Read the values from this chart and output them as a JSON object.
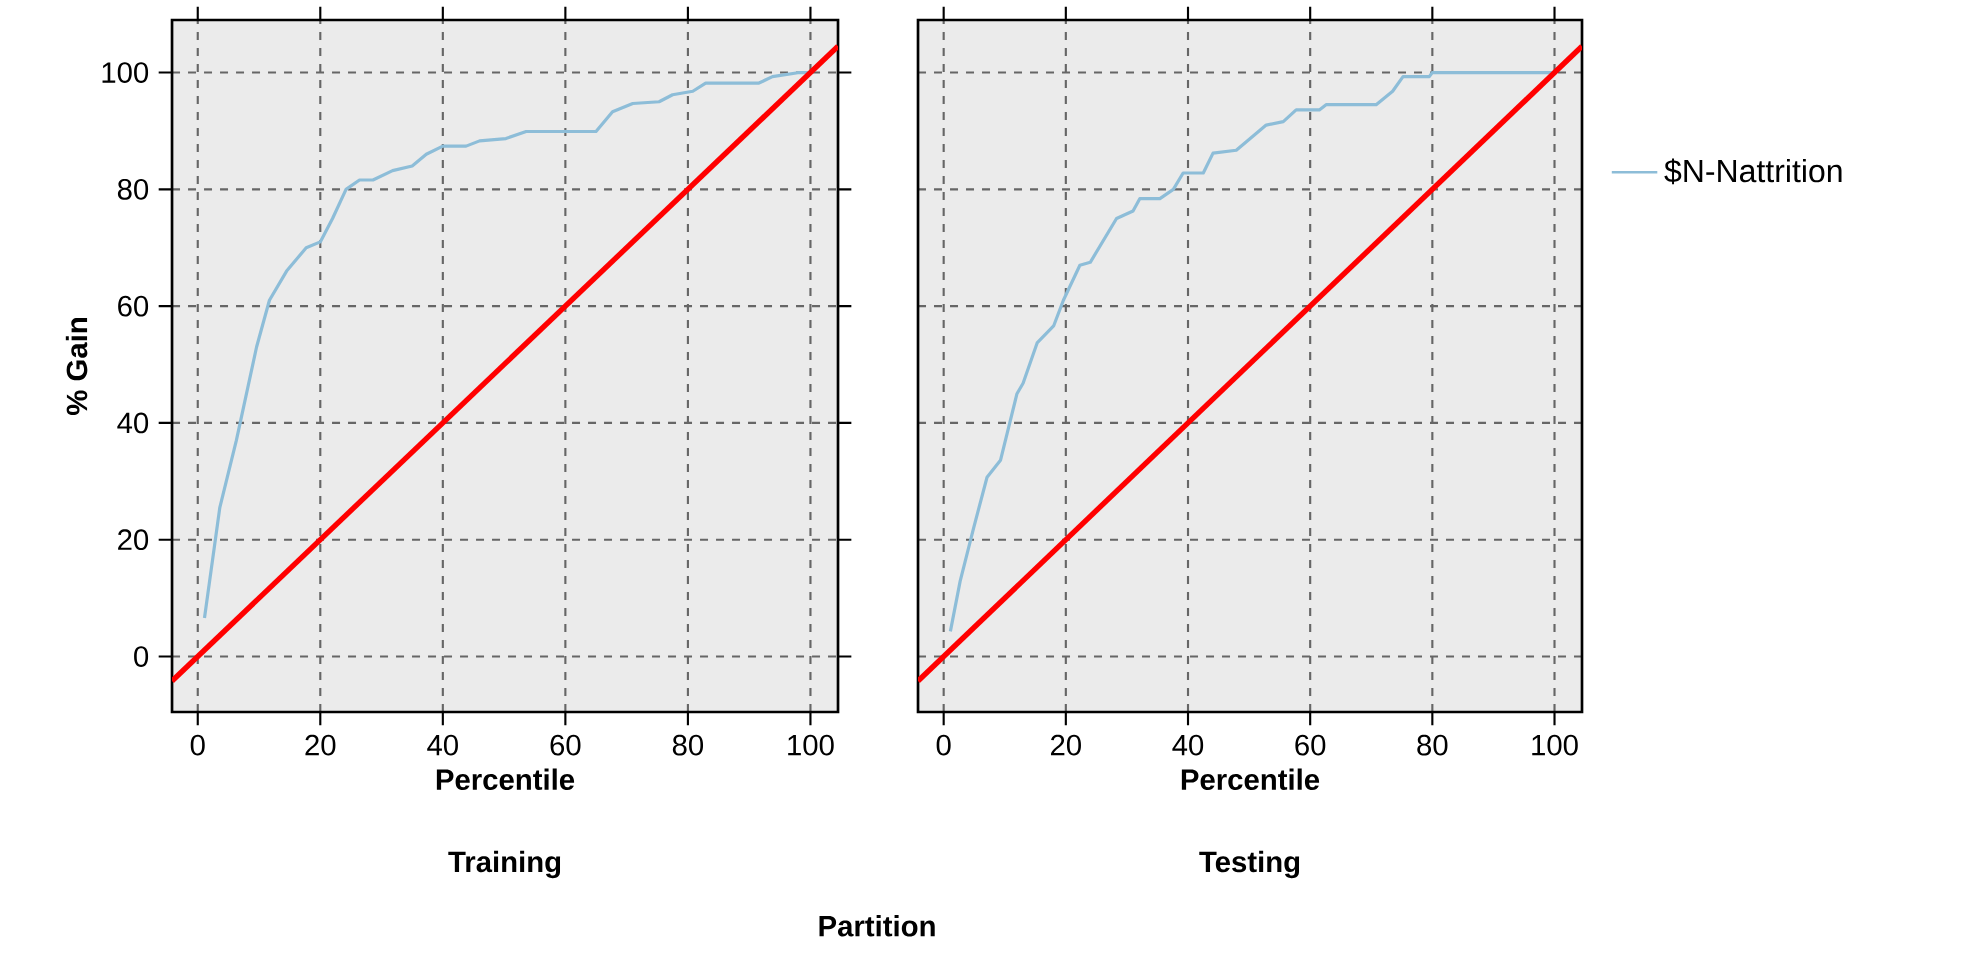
{
  "chart_data": [
    {
      "type": "line",
      "title": "Training",
      "xlabel": "Percentile",
      "ylabel": "% Gain",
      "annotations": [
        "Partition"
      ],
      "xlim": [
        -4.2,
        104.5
      ],
      "ylim": [
        -9.5,
        109
      ],
      "xticks": [
        0,
        20,
        40,
        60,
        80,
        100
      ],
      "yticks": [
        0,
        20,
        40,
        60,
        80,
        100
      ],
      "grid": true,
      "legend": false,
      "marker": "none",
      "line_style": "solid",
      "series": [
        {
          "color": "#8dbdd8",
          "x": [
            1.1,
            3.6,
            6.3,
            9.6,
            11.7,
            14.5,
            17.7,
            20,
            22,
            24.2,
            26.4,
            28.6,
            31.8,
            35,
            37.3,
            40,
            43.8,
            46,
            50.3,
            53.6,
            60.1,
            65,
            67.7,
            71,
            75.3,
            77.5,
            80.8,
            82.9,
            91.6,
            93.8,
            98.2,
            100
          ],
          "values": [
            6.6,
            25.5,
            37,
            53,
            61,
            66,
            70,
            71,
            75,
            80,
            81.6,
            81.6,
            83.2,
            84,
            86,
            87.4,
            87.4,
            88.3,
            88.7,
            89.9,
            89.9,
            89.9,
            93.3,
            94.7,
            95,
            96.2,
            96.8,
            98.2,
            98.2,
            99.3,
            100,
            100
          ]
        },
        {
          "color": "#ff0000",
          "x": [
            -4.2,
            104.5
          ],
          "values": [
            -4.2,
            104.5
          ]
        }
      ]
    },
    {
      "type": "line",
      "title": "Testing",
      "xlabel": "Percentile",
      "xlim": [
        -4.2,
        104.5
      ],
      "ylim": [
        -9.5,
        109
      ],
      "xticks": [
        0,
        20,
        40,
        60,
        80,
        100
      ],
      "yticks": [
        0,
        20,
        40,
        60,
        80,
        100
      ],
      "tick_labels": "x",
      "grid": true,
      "legend": "right",
      "marker": "none",
      "line_style": "solid",
      "series": [
        {
          "name": "$N-Nattrition",
          "color": "#8dbdd8",
          "x": [
            1.1,
            2.7,
            4.9,
            7.1,
            9.3,
            12,
            13,
            15.3,
            18,
            19.6,
            22.3,
            24,
            28.3,
            31,
            32.1,
            35.4,
            37.6,
            39.2,
            42.5,
            44.1,
            47.9,
            49.6,
            52.8,
            55.6,
            57.7,
            61.5,
            62.6,
            70.8,
            73.5,
            75.2,
            79.5,
            80,
            100
          ],
          "values": [
            4.3,
            12.9,
            22,
            30.7,
            33.6,
            45,
            46.8,
            53.7,
            56.6,
            61,
            67,
            67.5,
            75,
            76.3,
            78.4,
            78.4,
            80,
            82.8,
            82.8,
            86.2,
            86.7,
            88.2,
            91,
            91.6,
            93.6,
            93.6,
            94.5,
            94.5,
            96.8,
            99.3,
            99.3,
            100,
            100
          ]
        },
        {
          "color": "#ff0000",
          "x": [
            -4.2,
            104.5
          ],
          "values": [
            -4.2,
            104.5
          ]
        }
      ]
    }
  ]
}
